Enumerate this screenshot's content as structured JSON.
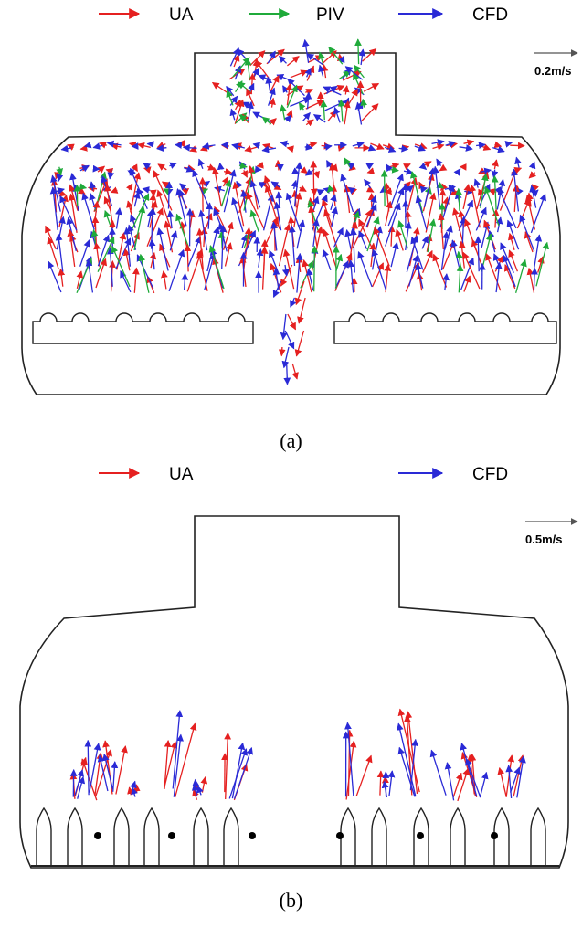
{
  "panel_a": {
    "legend": [
      {
        "label": "UA",
        "color": "#e52020"
      },
      {
        "label": "PIV",
        "color": "#1faa3a"
      },
      {
        "label": "CFD",
        "color": "#2a2ad6"
      }
    ],
    "scale_label": "0.2m/s",
    "caption": "(a)"
  },
  "panel_b": {
    "legend": [
      {
        "label": "UA",
        "color": "#e52020"
      },
      {
        "label": "CFD",
        "color": "#2a2ad6"
      }
    ],
    "scale_label": "0.5m/s",
    "caption": "(b)"
  }
}
